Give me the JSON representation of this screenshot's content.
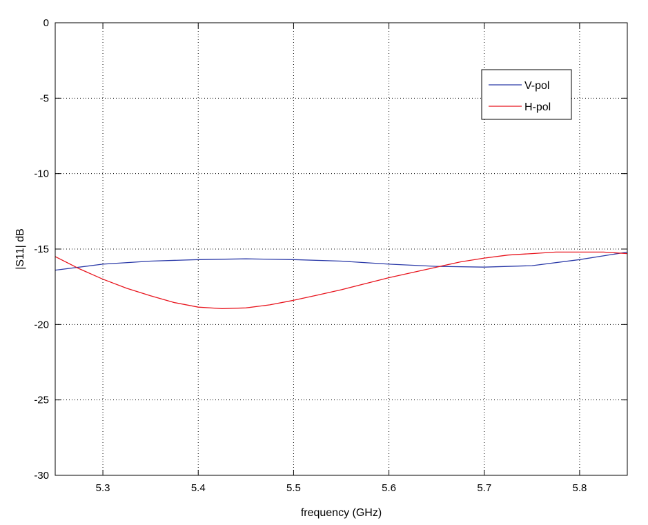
{
  "chart_data": {
    "type": "line",
    "xlabel": "frequency (GHz)",
    "ylabel": "|S11| dB",
    "xlim": [
      5.25,
      5.85
    ],
    "ylim": [
      -30,
      0
    ],
    "xticks": [
      "5.3",
      "5.4",
      "5.5",
      "5.6",
      "5.7",
      "5.8"
    ],
    "xtick_values": [
      5.3,
      5.4,
      5.5,
      5.6,
      5.7,
      5.8
    ],
    "yticks": [
      "0",
      "-5",
      "-10",
      "-15",
      "-20",
      "-25",
      "-30"
    ],
    "ytick_values": [
      0,
      -5,
      -10,
      -15,
      -20,
      -25,
      -30
    ],
    "grid": true,
    "legend_position": "top-right",
    "series": [
      {
        "name": "V-pol",
        "color": "#2b3aa8",
        "x": [
          5.25,
          5.3,
          5.35,
          5.4,
          5.45,
          5.5,
          5.55,
          5.6,
          5.65,
          5.7,
          5.75,
          5.8,
          5.85
        ],
        "y": [
          -16.4,
          -16.0,
          -15.8,
          -15.7,
          -15.65,
          -15.7,
          -15.8,
          -16.0,
          -16.15,
          -16.2,
          -16.1,
          -15.7,
          -15.2
        ]
      },
      {
        "name": "H-pol",
        "color": "#e8141d",
        "x": [
          5.25,
          5.275,
          5.3,
          5.325,
          5.35,
          5.375,
          5.4,
          5.425,
          5.45,
          5.475,
          5.5,
          5.525,
          5.55,
          5.575,
          5.6,
          5.625,
          5.65,
          5.675,
          5.7,
          5.725,
          5.75,
          5.775,
          5.8,
          5.825,
          5.85
        ],
        "y": [
          -15.5,
          -16.3,
          -17.0,
          -17.6,
          -18.1,
          -18.55,
          -18.85,
          -18.95,
          -18.9,
          -18.7,
          -18.4,
          -18.05,
          -17.7,
          -17.3,
          -16.9,
          -16.55,
          -16.2,
          -15.85,
          -15.6,
          -15.4,
          -15.3,
          -15.2,
          -15.2,
          -15.2,
          -15.3
        ]
      }
    ]
  }
}
